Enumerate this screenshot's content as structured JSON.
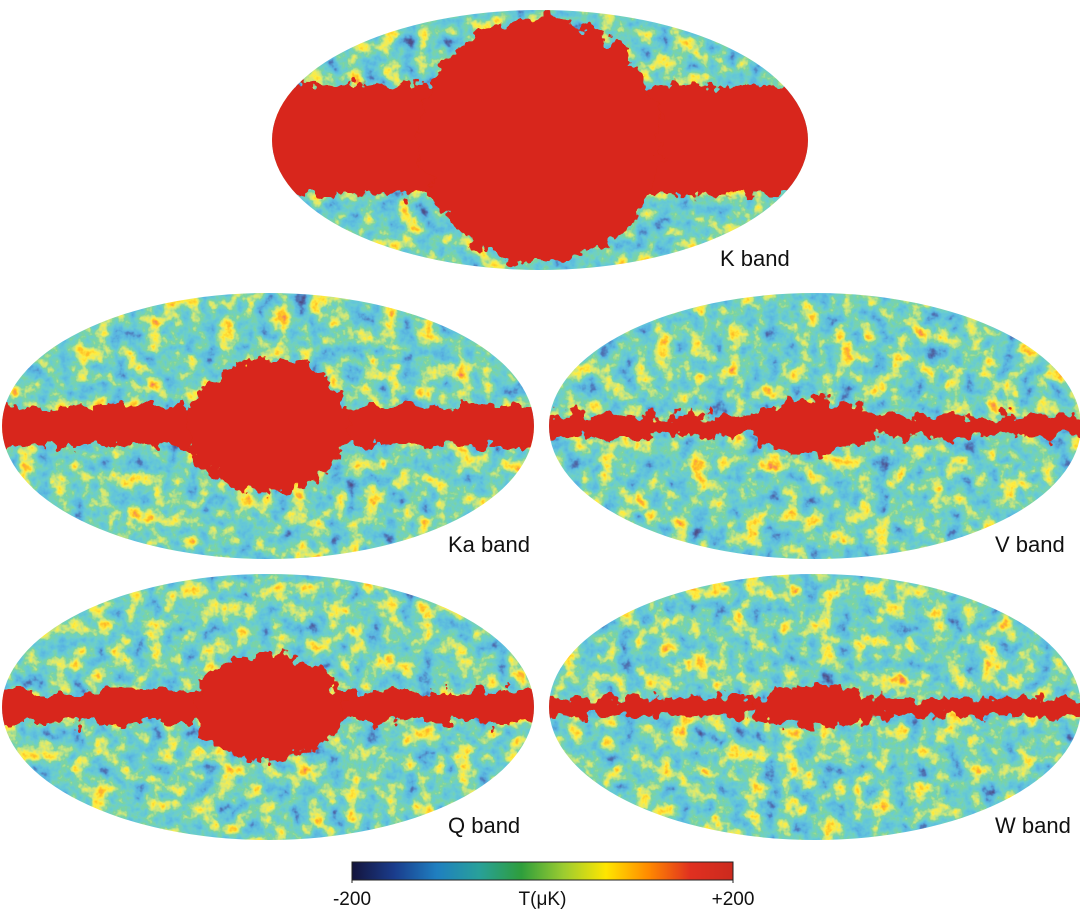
{
  "maps": [
    {
      "label": "K band"
    },
    {
      "label": "Ka band"
    },
    {
      "label": "V band"
    },
    {
      "label": "Q band"
    },
    {
      "label": "W band"
    }
  ],
  "colorbar": {
    "title": "T(μK)",
    "lim": [
      -200,
      200
    ],
    "ticks": [
      -200,
      {
        "value": 200,
        "label": "+200"
      }
    ],
    "colors": [
      "#14143c",
      "#1a3c8c",
      "#1f7fc0",
      "#28a09a",
      "#2e9e3c",
      "#9ccc30",
      "#ffe600",
      "#ff8a00",
      "#e03020",
      "#cc2a1e"
    ]
  }
}
